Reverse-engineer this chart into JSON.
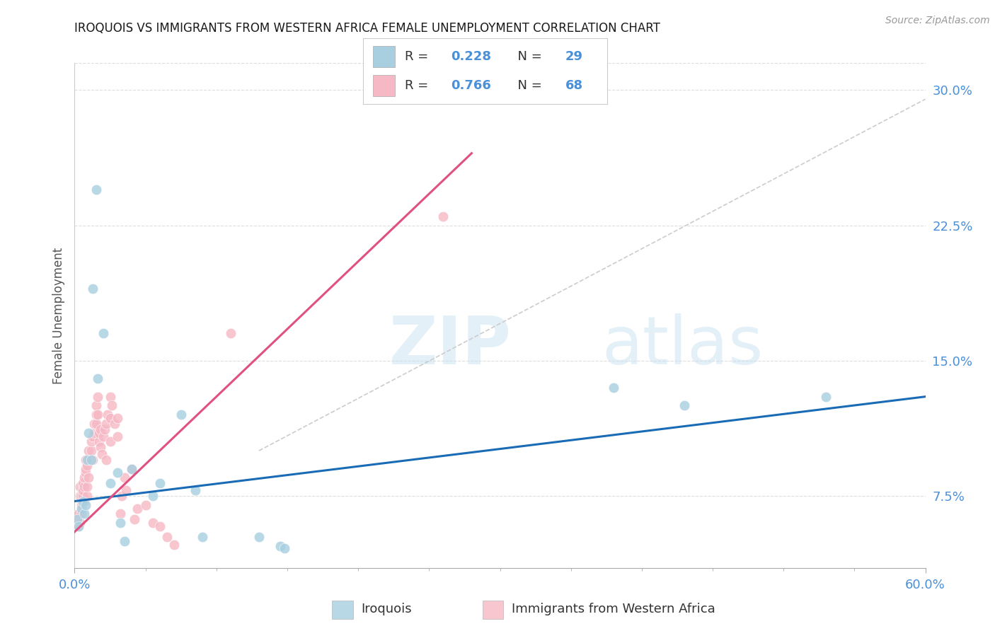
{
  "title": "IROQUOIS VS IMMIGRANTS FROM WESTERN AFRICA FEMALE UNEMPLOYMENT CORRELATION CHART",
  "source": "Source: ZipAtlas.com",
  "xtick_left_label": "0.0%",
  "xtick_right_label": "60.0%",
  "ylabel": "Female Unemployment",
  "ytick_vals": [
    0.075,
    0.15,
    0.225,
    0.3
  ],
  "ytick_labels": [
    "7.5%",
    "15.0%",
    "22.5%",
    "30.0%"
  ],
  "xlim": [
    0.0,
    0.6
  ],
  "ylim": [
    0.035,
    0.315
  ],
  "watermark": "ZIPatlas",
  "iroquois_R": 0.228,
  "iroquois_N": 29,
  "immigrants_R": 0.766,
  "immigrants_N": 68,
  "iroquois_color": "#a8cfe0",
  "immigrants_color": "#f5b8c4",
  "iroquois_line_color": "#1a6bb5",
  "immigrants_line_color": "#e05080",
  "dashed_line_color": "#cccccc",
  "iroquois_x": [
    0.002,
    0.003,
    0.005,
    0.006,
    0.007,
    0.008,
    0.009,
    0.01,
    0.012,
    0.013,
    0.015,
    0.016,
    0.02,
    0.025,
    0.03,
    0.032,
    0.035,
    0.04,
    0.055,
    0.06,
    0.075,
    0.085,
    0.09,
    0.13,
    0.145,
    0.148,
    0.38,
    0.43,
    0.53
  ],
  "iroquois_y": [
    0.062,
    0.058,
    0.068,
    0.072,
    0.065,
    0.07,
    0.095,
    0.11,
    0.095,
    0.19,
    0.245,
    0.14,
    0.165,
    0.082,
    0.088,
    0.06,
    0.05,
    0.09,
    0.075,
    0.082,
    0.12,
    0.078,
    0.052,
    0.052,
    0.047,
    0.046,
    0.135,
    0.125,
    0.13
  ],
  "immigrants_x": [
    0.001,
    0.002,
    0.002,
    0.003,
    0.003,
    0.004,
    0.004,
    0.004,
    0.005,
    0.005,
    0.005,
    0.006,
    0.006,
    0.006,
    0.007,
    0.007,
    0.007,
    0.008,
    0.008,
    0.008,
    0.009,
    0.009,
    0.009,
    0.01,
    0.01,
    0.01,
    0.012,
    0.012,
    0.013,
    0.013,
    0.014,
    0.014,
    0.015,
    0.015,
    0.015,
    0.016,
    0.016,
    0.017,
    0.017,
    0.018,
    0.018,
    0.019,
    0.02,
    0.021,
    0.022,
    0.022,
    0.023,
    0.025,
    0.025,
    0.025,
    0.026,
    0.028,
    0.03,
    0.03,
    0.032,
    0.033,
    0.035,
    0.036,
    0.04,
    0.042,
    0.044,
    0.05,
    0.055,
    0.06,
    0.065,
    0.07,
    0.11,
    0.26
  ],
  "immigrants_y": [
    0.062,
    0.06,
    0.064,
    0.058,
    0.065,
    0.06,
    0.075,
    0.08,
    0.065,
    0.07,
    0.075,
    0.075,
    0.078,
    0.082,
    0.072,
    0.08,
    0.085,
    0.088,
    0.09,
    0.095,
    0.075,
    0.08,
    0.092,
    0.085,
    0.095,
    0.1,
    0.1,
    0.105,
    0.095,
    0.108,
    0.11,
    0.115,
    0.115,
    0.12,
    0.125,
    0.12,
    0.13,
    0.105,
    0.11,
    0.102,
    0.112,
    0.098,
    0.108,
    0.112,
    0.095,
    0.115,
    0.12,
    0.105,
    0.118,
    0.13,
    0.125,
    0.115,
    0.108,
    0.118,
    0.065,
    0.075,
    0.085,
    0.078,
    0.09,
    0.062,
    0.068,
    0.07,
    0.06,
    0.058,
    0.052,
    0.048,
    0.165,
    0.23
  ],
  "iro_line": [
    0.0,
    0.6,
    0.072,
    0.13
  ],
  "imm_line": [
    0.0,
    0.28,
    0.055,
    0.265
  ],
  "dash_line": [
    0.13,
    0.6,
    0.1,
    0.295
  ],
  "grid_color": "#dddddd",
  "bg_color": "#ffffff",
  "title_color": "#1a1a1a",
  "axis_tick_color": "#4a90d9"
}
